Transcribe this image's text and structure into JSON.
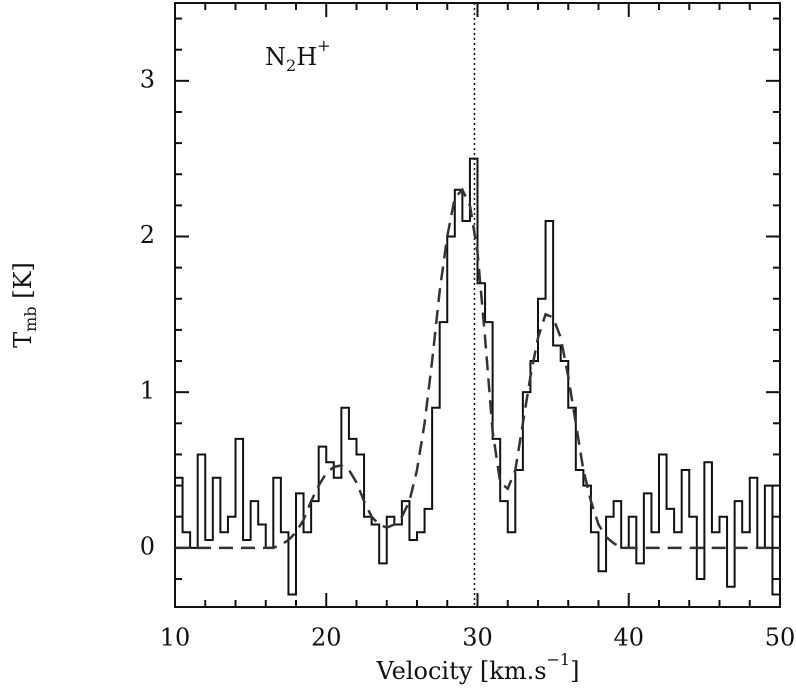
{
  "chart_data": {
    "type": "step",
    "annotation": {
      "main": "N",
      "sub": "2",
      "rest": "H",
      "sup": "+"
    },
    "xlabel": {
      "main": "Velocity [km.s",
      "sup": "−1",
      "end": "]"
    },
    "ylabel": {
      "main": "T",
      "sub": "mb",
      "unit": " [K]"
    },
    "xlim": [
      10,
      50
    ],
    "ylim": [
      -0.38,
      3.5
    ],
    "xticks": [
      10,
      20,
      30,
      40,
      50
    ],
    "yticks": [
      0,
      1,
      2,
      3
    ],
    "xminorticks": [
      12,
      14,
      16,
      18,
      22,
      24,
      26,
      28,
      32,
      34,
      36,
      38,
      42,
      44,
      46,
      48
    ],
    "yminorticks": [
      -0.2,
      0.2,
      0.4,
      0.6,
      0.8,
      1.2,
      1.4,
      1.6,
      1.8,
      2.2,
      2.4,
      2.6,
      2.8,
      3.2,
      3.4
    ],
    "vline": 29.8,
    "series": [
      {
        "color": "#111111",
        "style": "step",
        "x": [
          10,
          10.5,
          11,
          11.5,
          12,
          12.5,
          13,
          13.5,
          14,
          14.5,
          15,
          15.5,
          16,
          16.5,
          17,
          17.5,
          18,
          18.5,
          19,
          19.5,
          20,
          20.5,
          21,
          21.5,
          22,
          22.5,
          23,
          23.5,
          24,
          24.5,
          25,
          25.5,
          26,
          26.5,
          27,
          27.5,
          28,
          28.5,
          29,
          29.5,
          30,
          30.5,
          31,
          31.5,
          32,
          32.5,
          33,
          33.5,
          34,
          34.5,
          35,
          35.5,
          36,
          36.5,
          37,
          37.5,
          38,
          38.5,
          39,
          39.5,
          40,
          40.5,
          41,
          41.5,
          42,
          42.5,
          43,
          43.5,
          44,
          44.5,
          45,
          45.5,
          46,
          46.5,
          47,
          47.5,
          48,
          48.5,
          49,
          49.5
        ],
        "values": [
          0.45,
          0.1,
          0.0,
          0.6,
          0.05,
          0.45,
          0.1,
          0.2,
          0.7,
          0.05,
          0.3,
          0.15,
          0.0,
          0.45,
          0.1,
          -0.3,
          0.35,
          0.1,
          0.3,
          0.65,
          0.55,
          0.45,
          0.9,
          0.7,
          0.6,
          0.2,
          0.15,
          -0.1,
          0.2,
          0.15,
          0.3,
          0.05,
          0.1,
          0.25,
          0.9,
          1.45,
          2.0,
          2.3,
          2.1,
          2.5,
          1.7,
          1.45,
          0.7,
          0.3,
          0.1,
          0.5,
          1.0,
          1.2,
          1.6,
          2.1,
          1.3,
          1.2,
          0.9,
          0.5,
          0.4,
          0.1,
          -0.15,
          0.2,
          0.3,
          0.0,
          0.2,
          -0.1,
          0.35,
          0.1,
          0.6,
          0.25,
          0.1,
          0.5,
          0.2,
          -0.2,
          0.55,
          0.1,
          0.2,
          -0.25,
          0.3,
          0.1,
          0.45,
          0.0,
          0.4,
          -0.3
        ]
      },
      {
        "color": "#333333",
        "style": "dashed",
        "x": [
          10,
          10.5,
          11,
          11.5,
          12,
          12.5,
          13,
          13.5,
          14,
          14.5,
          15,
          15.5,
          16,
          16.5,
          17,
          17.5,
          18,
          18.5,
          19,
          19.5,
          20,
          20.5,
          21,
          21.5,
          22,
          22.5,
          23,
          23.5,
          24,
          24.5,
          25,
          25.5,
          26,
          26.5,
          27,
          27.5,
          28,
          28.5,
          29,
          29.5,
          30,
          30.5,
          31,
          31.5,
          32,
          32.5,
          33,
          33.5,
          34,
          34.5,
          35,
          35.5,
          36,
          36.5,
          37,
          37.5,
          38,
          38.5,
          39,
          39.5,
          40,
          40.5,
          41,
          41.5,
          42,
          42.5,
          43,
          43.5,
          44,
          44.5,
          45,
          45.5,
          46,
          46.5,
          47,
          47.5,
          48,
          48.5,
          49,
          49.5,
          50
        ],
        "values": [
          0,
          0,
          0,
          0,
          0,
          0,
          0,
          0,
          0,
          0,
          0,
          0,
          0,
          0,
          0.02,
          0.05,
          0.1,
          0.18,
          0.3,
          0.4,
          0.48,
          0.52,
          0.53,
          0.5,
          0.42,
          0.3,
          0.2,
          0.15,
          0.13,
          0.15,
          0.2,
          0.3,
          0.5,
          0.8,
          1.2,
          1.65,
          2.0,
          2.25,
          2.3,
          2.2,
          1.9,
          1.35,
          0.75,
          0.42,
          0.38,
          0.5,
          0.8,
          1.1,
          1.35,
          1.5,
          1.48,
          1.35,
          1.1,
          0.8,
          0.5,
          0.3,
          0.15,
          0.07,
          0.03,
          0,
          0,
          0,
          0,
          0,
          0,
          0,
          0,
          0,
          0,
          0,
          0,
          0,
          0,
          0,
          0,
          0,
          0,
          0,
          0,
          0,
          0
        ]
      }
    ]
  }
}
